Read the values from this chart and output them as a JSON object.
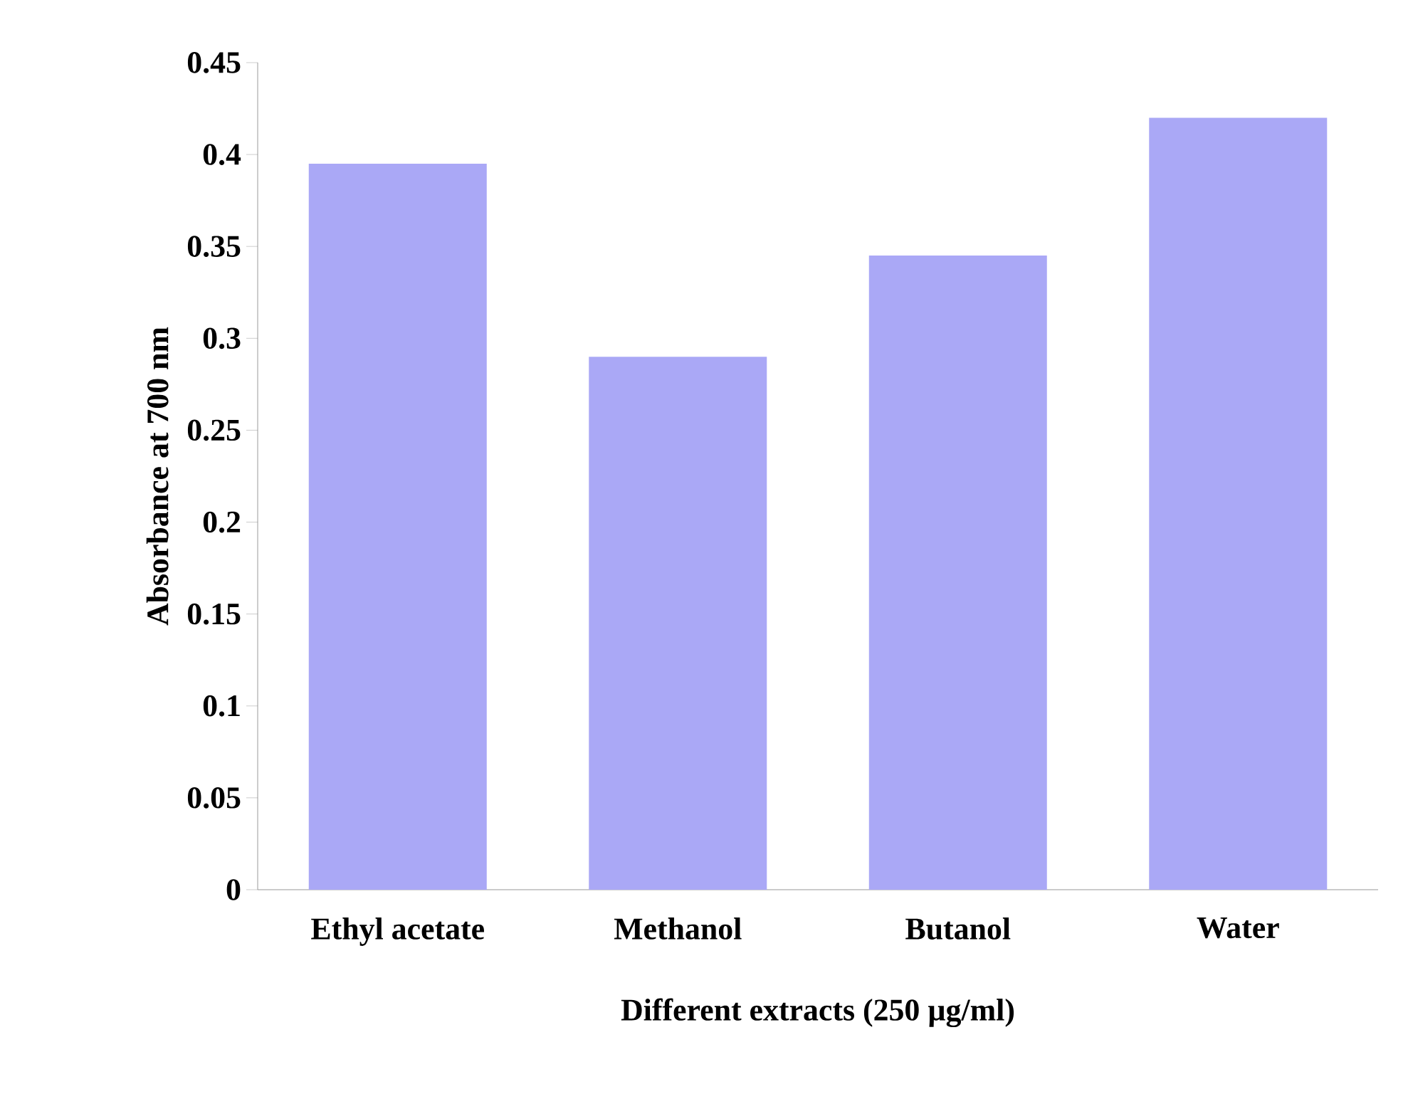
{
  "chart_data": {
    "type": "bar",
    "xlabel": "Different extracts (250 µg/ml)",
    "ylabel": "Absorbance at 700 nm",
    "categories": [
      "Ethyl acetate",
      "Methanol",
      "Butanol",
      "Water"
    ],
    "values": [
      0.395,
      0.29,
      0.345,
      0.42
    ],
    "color": "#aaa8f6",
    "ylim": [
      0,
      0.45
    ],
    "yticks": [
      0,
      0.05,
      0.1,
      0.15,
      0.2,
      0.25,
      0.3,
      0.35,
      0.4,
      0.45
    ]
  }
}
